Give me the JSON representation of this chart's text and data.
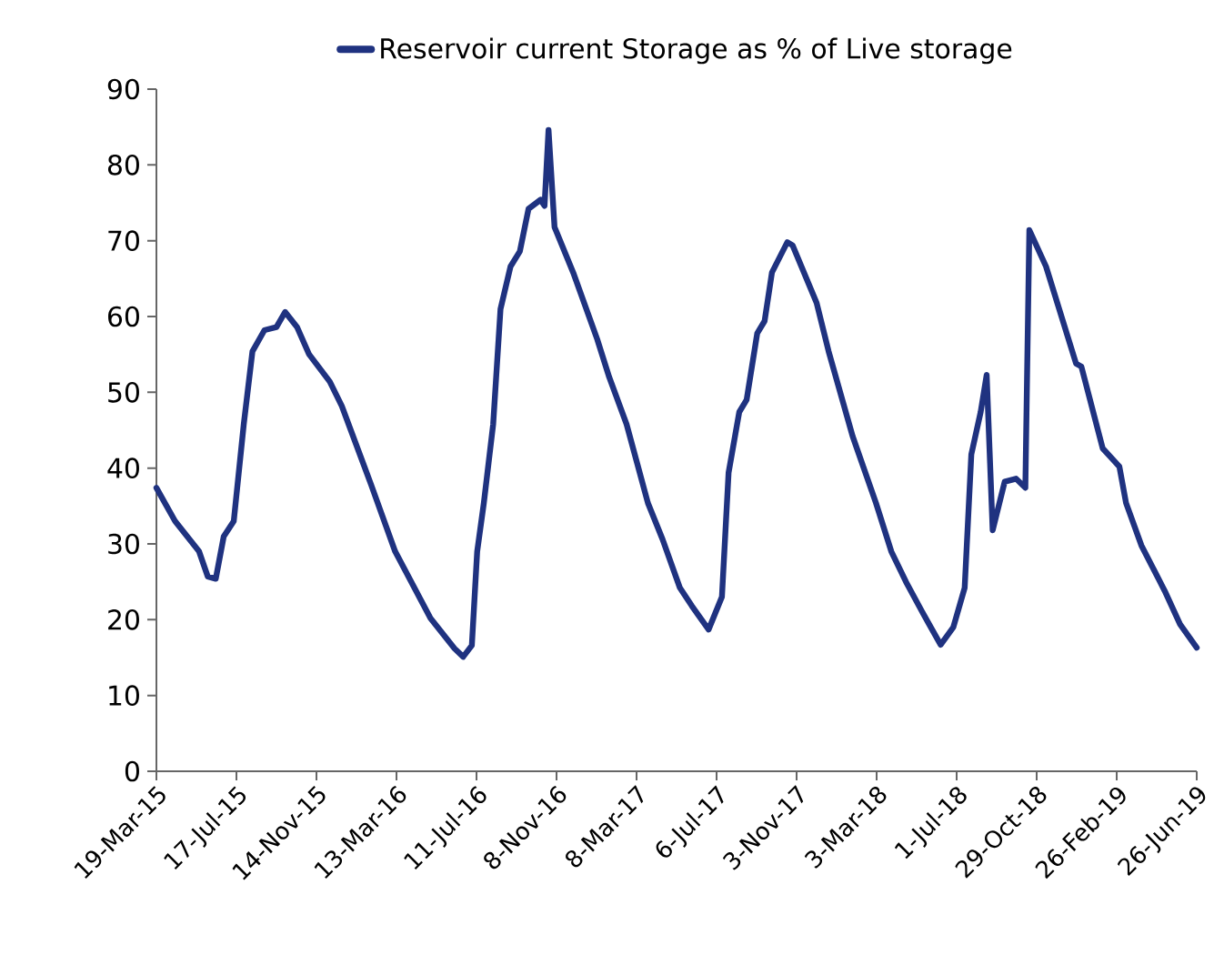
{
  "chart_data": {
    "type": "line",
    "legend": "top",
    "marker": "none",
    "line_style": "solid",
    "grid": false,
    "x": [
      "2015-03-19",
      "2015-04-16",
      "2015-05-22",
      "2015-06-04",
      "2015-06-16",
      "2015-06-28",
      "2015-07-13",
      "2015-07-28",
      "2015-08-10",
      "2015-08-28",
      "2015-09-15",
      "2015-09-28",
      "2015-10-16",
      "2015-11-03",
      "2015-12-04",
      "2015-12-22",
      "2016-02-04",
      "2016-03-11",
      "2016-05-03",
      "2016-06-08",
      "2016-06-21",
      "2016-07-04",
      "2016-07-12",
      "2016-07-22",
      "2016-08-05",
      "2016-08-16",
      "2016-08-31",
      "2016-09-14",
      "2016-09-27",
      "2016-10-15",
      "2016-10-21",
      "2016-10-27",
      "2016-11-05",
      "2016-12-03",
      "2017-01-08",
      "2017-01-26",
      "2017-02-21",
      "2017-03-25",
      "2017-04-16",
      "2017-05-12",
      "2017-05-30",
      "2017-06-24",
      "2017-07-14",
      "2017-07-24",
      "2017-08-09",
      "2017-08-20",
      "2017-09-05",
      "2017-09-16",
      "2017-09-27",
      "2017-10-20",
      "2017-10-28",
      "2017-12-03",
      "2017-12-21",
      "2018-01-26",
      "2018-03-02",
      "2018-03-25",
      "2018-04-16",
      "2018-05-13",
      "2018-06-07",
      "2018-06-26",
      "2018-07-13",
      "2018-07-23",
      "2018-08-06",
      "2018-08-15",
      "2018-08-24",
      "2018-09-11",
      "2018-09-28",
      "2018-10-12",
      "2018-10-18",
      "2018-11-12",
      "2018-12-27",
      "2019-01-04",
      "2019-02-05",
      "2019-03-02",
      "2019-03-12",
      "2019-04-04",
      "2019-05-09",
      "2019-06-01",
      "2019-06-26"
    ],
    "series": [
      {
        "name": "Reservoir current Storage as % of Live storage",
        "color": "#1f3280",
        "values": [
          37.4,
          33.0,
          29.0,
          25.7,
          25.4,
          31.0,
          33.0,
          45.8,
          55.4,
          58.2,
          58.6,
          60.6,
          58.6,
          55.0,
          51.4,
          48.2,
          37.8,
          29.0,
          20.2,
          16.2,
          15.1,
          16.6,
          29.0,
          35.4,
          45.8,
          61.0,
          66.6,
          68.6,
          74.2,
          75.4,
          74.6,
          84.6,
          71.8,
          65.8,
          57.0,
          52.0,
          45.8,
          35.4,
          30.6,
          24.2,
          21.8,
          18.7,
          23.0,
          39.4,
          47.4,
          49.0,
          57.8,
          59.4,
          65.8,
          69.8,
          69.4,
          61.8,
          55.4,
          44.2,
          35.4,
          29.0,
          25.0,
          20.6,
          16.7,
          19.0,
          24.2,
          41.8,
          47.4,
          52.3,
          31.8,
          38.2,
          38.6,
          37.4,
          71.4,
          66.6,
          53.8,
          53.4,
          42.6,
          40.2,
          35.4,
          29.8,
          23.8,
          19.4,
          16.3
        ]
      }
    ],
    "xlim": [
      "2015-03-19",
      "2019-06-26"
    ],
    "xticks": [
      {
        "value": "2015-03-19",
        "label": "19-Mar-15"
      },
      {
        "value": "2015-07-17",
        "label": "17-Jul-15"
      },
      {
        "value": "2015-11-14",
        "label": "14-Nov-15"
      },
      {
        "value": "2016-03-13",
        "label": "13-Mar-16"
      },
      {
        "value": "2016-07-11",
        "label": "11-Jul-16"
      },
      {
        "value": "2016-11-08",
        "label": "8-Nov-16"
      },
      {
        "value": "2017-03-08",
        "label": "8-Mar-17"
      },
      {
        "value": "2017-07-06",
        "label": "6-Jul-17"
      },
      {
        "value": "2017-11-03",
        "label": "3-Nov-17"
      },
      {
        "value": "2018-03-03",
        "label": "3-Mar-18"
      },
      {
        "value": "2018-07-01",
        "label": "1-Jul-18"
      },
      {
        "value": "2018-10-29",
        "label": "29-Oct-18"
      },
      {
        "value": "2019-02-26",
        "label": "26-Feb-19"
      },
      {
        "value": "2019-06-26",
        "label": "26-Jun-19"
      }
    ],
    "ylim": [
      0,
      90
    ],
    "yticks": [
      0,
      10,
      20,
      30,
      40,
      50,
      60,
      70,
      80,
      90
    ]
  }
}
